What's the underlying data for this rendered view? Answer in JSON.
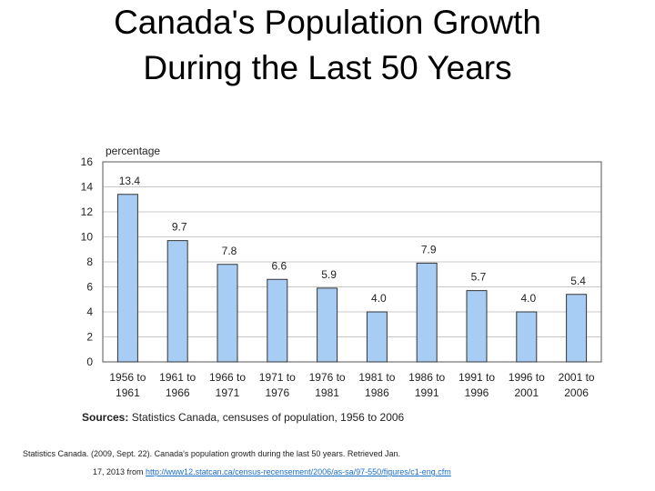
{
  "page": {
    "title_line1": "Canada's Population Growth",
    "title_line2": "During the Last 50 Years"
  },
  "chart_data": {
    "type": "bar",
    "ylabel": "percentage",
    "ylim": [
      0,
      16
    ],
    "yticks": [
      0,
      2,
      4,
      6,
      8,
      10,
      12,
      14,
      16
    ],
    "categories": [
      [
        "1956 to",
        "1961"
      ],
      [
        "1961 to",
        "1966"
      ],
      [
        "1966 to",
        "1971"
      ],
      [
        "1971 to",
        "1976"
      ],
      [
        "1976 to",
        "1981"
      ],
      [
        "1981 to",
        "1986"
      ],
      [
        "1986 to",
        "1991"
      ],
      [
        "1991 to",
        "1996"
      ],
      [
        "1996 to",
        "2001"
      ],
      [
        "2001 to",
        "2006"
      ]
    ],
    "values": [
      13.4,
      9.7,
      7.8,
      6.6,
      5.9,
      4.0,
      7.9,
      5.7,
      4.0,
      5.4
    ],
    "value_labels": [
      "13.4",
      "9.7",
      "7.8",
      "6.6",
      "5.9",
      "4.0",
      "7.9",
      "5.7",
      "4.0",
      "5.4"
    ],
    "bar_color": "#a8cdf5",
    "grid": true
  },
  "source": {
    "label": "Sources:",
    "text": " Statistics Canada, censuses of population, 1956 to 2006"
  },
  "citation": {
    "line1": "Statistics Canada. (2009, Sept. 22). Canada's population growth during the last 50 years. Retrieved Jan.",
    "line2_prefix": "17, 2013 from ",
    "link": "http://www12.statcan.ca/census-recensement/2006/as-sa/97-550/figures/c1-eng.cfm"
  }
}
